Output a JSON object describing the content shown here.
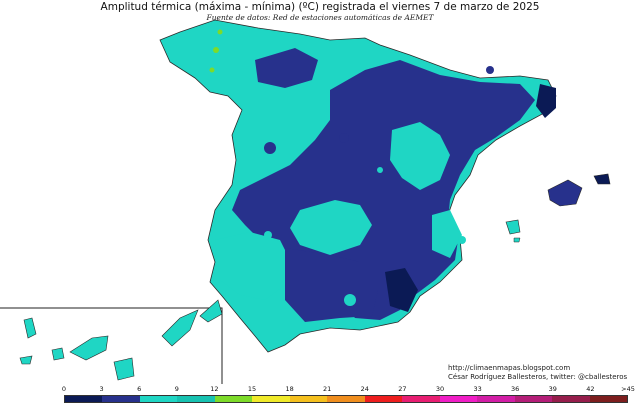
{
  "title": "Amplitud térmica (máxima - mínima) (ºC) registrada el viernes 7 de marzo de 2025",
  "subtitle": "Fuente de datos: Red de estaciones automáticas de AEMET",
  "credit_line1": "http://climaenmapas.blogspot.com",
  "credit_line2": "César Rodríguez Ballesteros, twitter: @cballesteros",
  "legend": {
    "ticks": [
      "0",
      "3",
      "6",
      "9",
      "12",
      "15",
      "18",
      "21",
      "24",
      "27",
      "30",
      "33",
      "36",
      "39",
      "42",
      ">45"
    ],
    "colors": [
      "#0b1a55",
      "#27318c",
      "#1fd6c4",
      "#17c2b1",
      "#7ddb2a",
      "#f0ea2a",
      "#f5c01e",
      "#f08e1e",
      "#ee1e1e",
      "#e81e72",
      "#f01ec6",
      "#d21ea6",
      "#b41e78",
      "#961e4c",
      "#7d1e1e"
    ]
  },
  "palette": {
    "dark_navy": "#0b1a55",
    "navy": "#27318c",
    "turquoise": "#1fd6c4",
    "teal": "#17c2b1",
    "green": "#7ddb2a",
    "border": "#2a2a2a"
  }
}
